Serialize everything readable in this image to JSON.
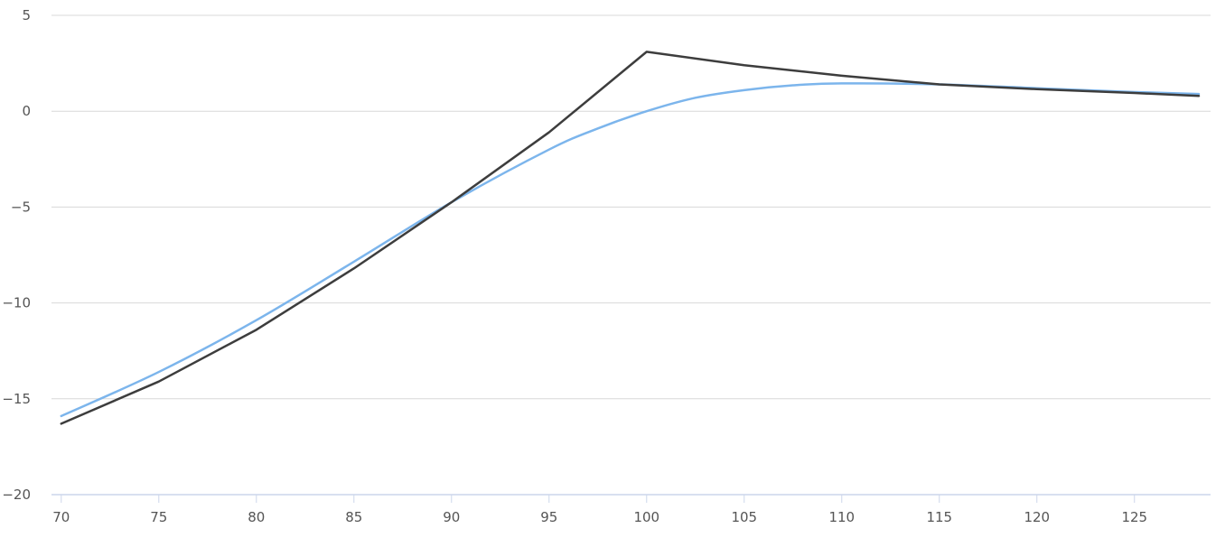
{
  "chart_data": {
    "type": "line",
    "title": "",
    "xlabel": "",
    "ylabel": "",
    "xlim": [
      69.5,
      128.9
    ],
    "ylim": [
      -20,
      5
    ],
    "x_ticks": [
      "70",
      "75",
      "80",
      "85",
      "90",
      "95",
      "100",
      "105",
      "110",
      "115",
      "120",
      "125"
    ],
    "y_ticks": [
      "5",
      "0",
      "−5",
      "−10",
      "−15",
      "−20"
    ],
    "grid": true,
    "legend": "none",
    "series": [
      {
        "color": "#3d3d3d",
        "x": [
          70,
          75,
          80,
          85,
          90,
          95,
          100,
          105,
          110,
          115,
          120,
          125,
          128.3
        ],
        "y": [
          -16.3,
          -14.1,
          -11.4,
          -8.2,
          -4.75,
          -1.1,
          3.1,
          2.4,
          1.85,
          1.4,
          1.15,
          0.95,
          0.8
        ]
      },
      {
        "color": "#7cb5ec",
        "x": [
          70,
          75,
          80,
          85,
          90,
          95,
          97.5,
          100,
          102.5,
          105,
          107.5,
          110,
          115,
          120,
          125,
          128.3
        ],
        "y": [
          -15.9,
          -13.6,
          -10.9,
          -7.85,
          -4.75,
          -2.0,
          -0.9,
          0,
          0.7,
          1.1,
          1.35,
          1.45,
          1.4,
          1.2,
          1.0,
          0.9
        ]
      }
    ]
  }
}
